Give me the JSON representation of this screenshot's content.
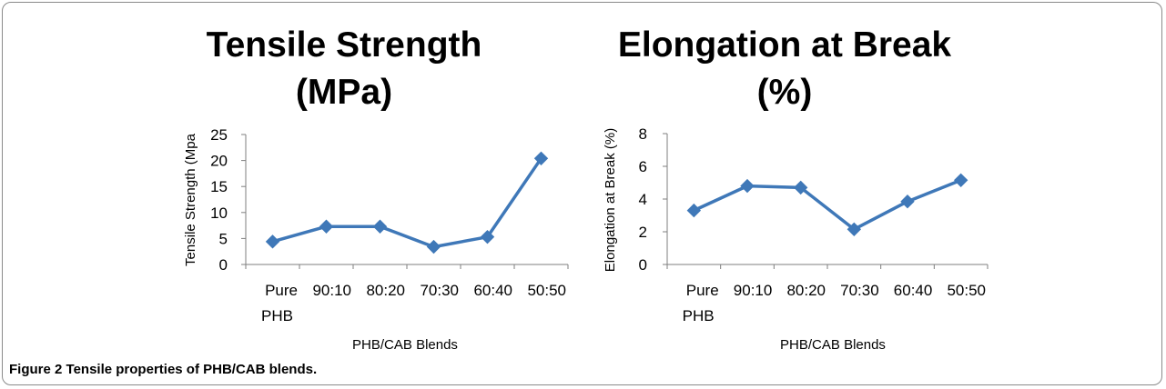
{
  "caption": {
    "label": "Figure 2",
    "text": "Tensile properties of PHB/CAB blends."
  },
  "colors": {
    "series": "#3f78b8",
    "axis": "#7f7f7f"
  },
  "chart_data": [
    {
      "type": "line",
      "title_lines": [
        "Tensile Strength",
        "(MPa)"
      ],
      "xlabel": "PHB/CAB Blends",
      "ylabel": "Tensile Strength (Mpa",
      "categories": [
        "Pure PHB",
        "90:10",
        "80:20",
        "70:30",
        "60:40",
        "50:50"
      ],
      "values": [
        4.4,
        7.3,
        7.3,
        3.4,
        5.3,
        20.4
      ],
      "ylim": [
        0,
        25
      ],
      "yticks": [
        0,
        5,
        10,
        15,
        20,
        25
      ],
      "grid": false,
      "marker": "diamond"
    },
    {
      "type": "line",
      "title_lines": [
        "Elongation at Break",
        "(%)"
      ],
      "xlabel": "PHB/CAB Blends",
      "ylabel": "Elongation at Break (%)",
      "categories": [
        "Pure PHB",
        "90:10",
        "80:20",
        "70:30",
        "60:40",
        "50:50"
      ],
      "values": [
        3.3,
        4.8,
        4.7,
        2.15,
        3.85,
        5.15
      ],
      "ylim": [
        0,
        8
      ],
      "yticks": [
        0,
        2,
        4,
        6,
        8
      ],
      "grid": false,
      "marker": "diamond"
    }
  ]
}
